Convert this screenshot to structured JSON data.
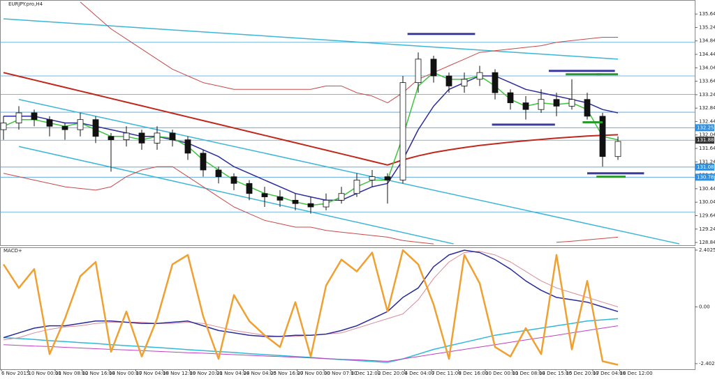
{
  "chart_data": [
    {
      "type": "candlestick",
      "title": "EURJPY.pro,H4",
      "xlabels": [
        "6 Nov 2015",
        "10 Nov 00:00",
        "11 Nov 08:00",
        "12 Nov 16:00",
        "14 Nov 00:00",
        "17 Nov 04:00",
        "18 Nov 12:00",
        "19 Nov 20:00",
        "21 Nov 04:00",
        "24 Nov 04:00",
        "25 Nov 16:00",
        "27 Nov 00:00",
        "30 Nov 07:00",
        "1 Dec 12:00",
        "2 Dec 20:00",
        "4 Dec 04:00",
        "7 Dec 11:00",
        "8 Dec 16:00",
        "10 Dec 00:00",
        "11 Dec 08:00",
        "14 Dec 15:00",
        "15 Dec 20:00",
        "17 Dec 04:00",
        "18 Dec 12:00"
      ],
      "open": [
        132.2,
        132.4,
        132.7,
        132.5,
        132.3,
        132.2,
        132.5,
        132.0,
        131.9,
        132.1,
        131.8,
        132.1,
        131.9,
        131.5,
        131.0,
        130.8,
        130.6,
        130.3,
        130.2,
        130.1,
        130.0,
        129.9,
        130.1,
        130.3,
        130.7,
        130.8,
        130.7,
        133.6,
        134.3,
        133.8,
        133.5,
        133.7,
        133.9,
        133.3,
        133.0,
        132.8,
        133.1,
        132.9,
        133.1,
        132.6,
        131.4
      ],
      "high": [
        132.6,
        132.9,
        132.8,
        132.6,
        132.4,
        132.7,
        132.6,
        132.1,
        132.3,
        132.2,
        132.3,
        132.2,
        132.0,
        131.6,
        131.1,
        130.9,
        130.7,
        130.5,
        130.4,
        130.3,
        130.2,
        130.3,
        130.5,
        130.9,
        131.0,
        130.9,
        133.8,
        134.5,
        134.4,
        133.9,
        133.9,
        134.1,
        134.0,
        133.4,
        133.2,
        133.4,
        133.3,
        133.7,
        133.3,
        132.7,
        132.0
      ],
      "low": [
        131.9,
        132.2,
        132.3,
        132.0,
        131.9,
        132.0,
        131.8,
        130.95,
        131.7,
        131.6,
        131.6,
        131.7,
        131.3,
        130.8,
        130.6,
        130.4,
        130.1,
        129.9,
        129.9,
        129.8,
        129.7,
        129.8,
        130.0,
        130.2,
        130.5,
        130.0,
        130.6,
        133.3,
        133.6,
        133.3,
        133.3,
        133.5,
        133.1,
        132.8,
        132.5,
        132.7,
        132.6,
        132.8,
        132.5,
        131.1,
        131.3
      ],
      "close": [
        132.4,
        132.7,
        132.5,
        132.3,
        132.2,
        132.5,
        132.0,
        131.9,
        132.1,
        131.8,
        132.1,
        131.9,
        131.5,
        131.0,
        130.8,
        130.6,
        130.3,
        130.2,
        130.1,
        130.0,
        129.9,
        130.1,
        130.3,
        130.7,
        130.8,
        130.7,
        133.6,
        134.3,
        133.8,
        133.5,
        133.7,
        133.9,
        133.3,
        133.0,
        132.8,
        133.1,
        132.9,
        133.1,
        132.6,
        131.4,
        131.85
      ],
      "series": [
        {
          "color": "#c84848",
          "width": 1,
          "values": [
            null,
            null,
            null,
            null,
            null,
            136.0,
            135.6,
            135.2,
            134.9,
            134.6,
            134.3,
            134.0,
            133.8,
            133.6,
            133.5,
            133.4,
            133.4,
            133.4,
            133.4,
            133.4,
            133.4,
            133.5,
            133.5,
            133.3,
            133.2,
            133.0,
            133.3,
            133.7,
            133.9,
            134.1,
            134.3,
            134.5,
            134.55,
            134.6,
            134.65,
            134.7,
            134.8,
            134.85,
            134.9,
            134.95,
            134.95
          ]
        },
        {
          "color": "#c84848",
          "width": 1,
          "values": [
            130.9,
            130.8,
            130.7,
            130.6,
            130.5,
            130.45,
            130.4,
            130.5,
            130.8,
            131.0,
            131.1,
            131.1,
            130.8,
            130.5,
            130.2,
            129.9,
            129.7,
            129.5,
            129.4,
            129.3,
            129.3,
            129.2,
            129.15,
            129.1,
            129.05,
            129.0,
            128.9,
            128.85,
            128.8,
            null,
            null,
            null,
            null,
            null,
            null,
            null,
            128.85,
            128.88,
            128.92,
            128.96,
            129.0
          ]
        },
        {
          "color": "#c0281c",
          "width": 2,
          "values": [
            133.9,
            133.79,
            133.68,
            133.57,
            133.46,
            133.35,
            133.24,
            133.13,
            133.02,
            132.91,
            132.8,
            132.69,
            132.58,
            132.47,
            132.36,
            132.25,
            132.14,
            132.03,
            131.92,
            131.81,
            131.7,
            131.59,
            131.48,
            131.37,
            131.26,
            131.15,
            131.3,
            131.42,
            131.52,
            131.6,
            131.67,
            131.73,
            131.78,
            131.83,
            131.87,
            131.91,
            131.95,
            131.98,
            132.01,
            132.03,
            132.05
          ]
        },
        {
          "color": "#2b2b9b",
          "width": 1.5,
          "values": [
            132.6,
            132.6,
            132.6,
            132.5,
            132.4,
            132.4,
            132.3,
            132.2,
            132.1,
            132.0,
            132.0,
            131.9,
            131.8,
            131.6,
            131.4,
            131.1,
            130.9,
            130.7,
            130.5,
            130.3,
            130.2,
            130.1,
            130.1,
            130.3,
            130.5,
            130.6,
            131.3,
            132.2,
            132.9,
            133.4,
            133.6,
            133.8,
            133.8,
            133.6,
            133.4,
            133.3,
            133.2,
            133.1,
            133.0,
            132.8,
            132.7
          ]
        },
        {
          "color": "#3cc43c",
          "width": 1.5,
          "values": [
            132.3,
            132.5,
            132.5,
            132.4,
            132.3,
            132.4,
            132.2,
            132.0,
            132.0,
            131.9,
            132.0,
            131.95,
            131.7,
            131.3,
            131.0,
            130.7,
            130.5,
            130.3,
            130.2,
            130.05,
            129.95,
            130.0,
            130.2,
            130.5,
            130.7,
            130.7,
            132.0,
            133.5,
            133.9,
            133.7,
            133.7,
            133.8,
            133.5,
            133.1,
            132.9,
            133.0,
            132.95,
            133.0,
            132.8,
            132.0,
            131.9
          ]
        }
      ],
      "trendlines": [
        {
          "color": "#3bb6d6",
          "x": [
            0,
            40
          ],
          "y": [
            135.5,
            134.3
          ]
        },
        {
          "color": "#3bb6d6",
          "x": [
            1,
            44
          ],
          "y": [
            133.1,
            128.8
          ]
        },
        {
          "color": "#3bb6d6",
          "x": [
            1,
            29.3
          ],
          "y": [
            131.7,
            128.8
          ]
        }
      ],
      "levels": [
        134.8,
        133.8,
        133.25,
        132.72,
        132.258,
        131.887,
        131.087,
        130.786,
        129.75
      ],
      "segments": [
        {
          "color": "#3a3aa0",
          "start": 26.3,
          "end": 30.7,
          "value": 135.05
        },
        {
          "color": "#3a3aa0",
          "start": 35.5,
          "end": 39.8,
          "value": 133.95
        },
        {
          "color": "#3a3aa0",
          "start": 31.8,
          "end": 35.9,
          "value": 132.35
        },
        {
          "color": "#3a3aa0",
          "start": 38,
          "end": 41.7,
          "value": 130.9
        },
        {
          "color": "#2a9a2a",
          "start": 36.6,
          "end": 38.9,
          "value": 133.85
        },
        {
          "color": "#2a9a2a",
          "start": 38.6,
          "end": 40,
          "value": 133.85
        },
        {
          "color": "#2a9a2a",
          "start": 37.7,
          "end": 39,
          "value": 132.42
        },
        {
          "color": "#2a9a2a",
          "start": 38.6,
          "end": 40.5,
          "value": 130.8
        }
      ],
      "tags": [
        {
          "value": 132.258,
          "color": "#2f8fe0"
        },
        {
          "value": 131.887,
          "color": "#333333"
        },
        {
          "value": 131.087,
          "color": "#2f8fe0"
        },
        {
          "value": 130.786,
          "color": "#2f8fe0"
        }
      ],
      "ylim": [
        128.76,
        136.06
      ],
      "yticks": [
        135.642,
        135.242,
        134.842,
        134.442,
        134.042,
        133.642,
        133.242,
        132.842,
        132.442,
        132.042,
        131.642,
        131.242,
        130.842,
        130.442,
        130.042,
        129.642,
        129.242,
        128.842
      ]
    },
    {
      "type": "line",
      "title": "MACD+",
      "series": [
        {
          "color": "#30b8d8",
          "width": 1.5,
          "values": [
            -1.3,
            -1.34,
            -1.38,
            -1.43,
            -1.47,
            -1.51,
            -1.55,
            -1.6,
            -1.64,
            -1.68,
            -1.72,
            -1.76,
            -1.81,
            -1.85,
            -1.89,
            -1.93,
            -1.98,
            -2.02,
            -2.06,
            -2.1,
            -2.14,
            -2.19,
            -2.23,
            -2.27,
            -2.31,
            -2.35,
            -2.2,
            -2.0,
            -1.8,
            -1.65,
            -1.5,
            -1.35,
            -1.2,
            -1.1,
            -1.0,
            -0.9,
            -0.8,
            -0.7,
            -0.6,
            -0.55,
            -0.5
          ]
        },
        {
          "color": "#c040c0",
          "width": 1,
          "values": [
            -1.6,
            -1.63,
            -1.66,
            -1.68,
            -1.71,
            -1.74,
            -1.77,
            -1.8,
            -1.82,
            -1.85,
            -1.88,
            -1.91,
            -1.94,
            -1.96,
            -1.99,
            -2.02,
            -2.05,
            -2.08,
            -2.1,
            -2.13,
            -2.16,
            -2.19,
            -2.22,
            -2.24,
            -2.27,
            -2.3,
            -2.2,
            -2.1,
            -2.0,
            -1.9,
            -1.8,
            -1.7,
            -1.6,
            -1.5,
            -1.4,
            -1.3,
            -1.2,
            -1.1,
            -1.0,
            -0.9,
            -0.8
          ]
        },
        {
          "color": "#d88a9a",
          "width": 1,
          "values": [
            -1.4,
            -1.3,
            -1.1,
            -0.95,
            -0.85,
            -0.8,
            -0.7,
            -0.65,
            -0.65,
            -0.65,
            -0.7,
            -0.7,
            -0.65,
            -0.7,
            -0.85,
            -1.0,
            -1.1,
            -1.2,
            -1.25,
            -1.25,
            -1.2,
            -1.15,
            -1.1,
            -0.9,
            -0.7,
            -0.5,
            -0.3,
            0.3,
            1.2,
            1.9,
            2.3,
            2.35,
            2.2,
            1.9,
            1.5,
            1.1,
            0.8,
            0.6,
            0.4,
            0.2,
            0.0
          ]
        },
        {
          "color": "#2a2a9a",
          "width": 1.5,
          "values": [
            -1.3,
            -1.1,
            -0.9,
            -0.8,
            -0.8,
            -0.7,
            -0.6,
            -0.6,
            -0.65,
            -0.7,
            -0.7,
            -0.65,
            -0.6,
            -0.8,
            -1.0,
            -1.1,
            -1.2,
            -1.25,
            -1.25,
            -1.2,
            -1.2,
            -1.15,
            -1.0,
            -0.8,
            -0.5,
            -0.2,
            0.4,
            0.8,
            1.7,
            2.2,
            2.4,
            2.3,
            2.0,
            1.6,
            1.1,
            0.7,
            0.4,
            0.3,
            0.2,
            0.0,
            -0.2
          ]
        },
        {
          "color": "#f0a030",
          "width": 2.5,
          "values": [
            1.8,
            0.8,
            1.6,
            -2.0,
            -0.5,
            1.3,
            1.9,
            -1.9,
            -0.2,
            -2.1,
            -0.5,
            1.8,
            2.2,
            -0.4,
            -2.2,
            0.5,
            -0.6,
            -1.2,
            -1.7,
            0.2,
            -2.1,
            0.9,
            2.0,
            1.5,
            2.3,
            -0.2,
            2.4,
            1.8,
            0.1,
            -2.2,
            2.2,
            1.0,
            -1.7,
            -2.1,
            -0.9,
            -2.0,
            2.2,
            -1.8,
            1.1,
            -2.3,
            -2.45
          ]
        }
      ],
      "ylim": [
        -2.64,
        2.52
      ],
      "yticks": [
        2.4025,
        {
          "value": 0,
          "label": "0.00"
        },
        -2.4025
      ]
    }
  ]
}
